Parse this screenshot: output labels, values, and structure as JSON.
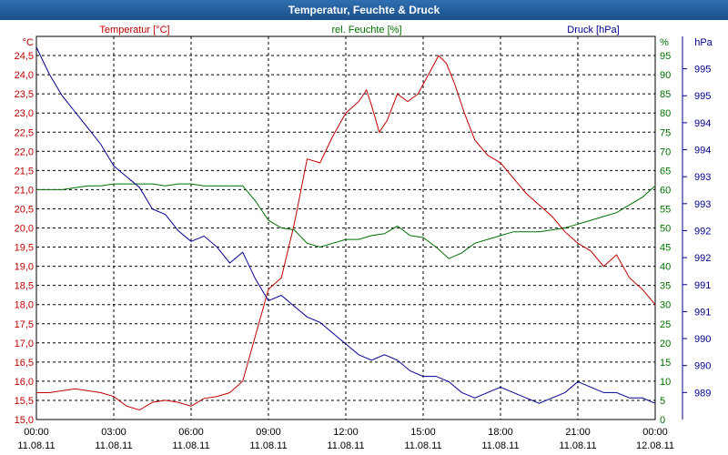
{
  "window": {
    "title": "Temperatur, Feuchte & Druck"
  },
  "chart_data": {
    "type": "line",
    "title": "Temperatur, Feuchte & Druck",
    "x_ticks": [
      {
        "time": "00:00",
        "date": "11.08.11"
      },
      {
        "time": "03:00",
        "date": "11.08.11"
      },
      {
        "time": "06:00",
        "date": "11.08.11"
      },
      {
        "time": "09:00",
        "date": "11.08.11"
      },
      {
        "time": "12:00",
        "date": "11.08.11"
      },
      {
        "time": "15:00",
        "date": "11.08.11"
      },
      {
        "time": "18:00",
        "date": "11.08.11"
      },
      {
        "time": "21:00",
        "date": "11.08.11"
      },
      {
        "time": "00:00",
        "date": "12.08.11"
      }
    ],
    "xlim_hours": [
      0,
      24
    ],
    "axes": {
      "temperature": {
        "label": "Temperatur [°C]",
        "unit": "°C",
        "ylim": [
          15.0,
          25.0
        ],
        "ticks": [
          "24,5",
          "24,0",
          "23,5",
          "23,0",
          "22,5",
          "22,0",
          "21,5",
          "21,0",
          "20,5",
          "20,0",
          "19,5",
          "19,0",
          "18,5",
          "18,0",
          "17,5",
          "17,0",
          "16,5",
          "16,0",
          "15,5",
          "15,0"
        ]
      },
      "humidity": {
        "label": "rel. Feuchte [%]",
        "unit": "%",
        "ylim": [
          0,
          100
        ],
        "ticks": [
          "95",
          "90",
          "85",
          "80",
          "75",
          "70",
          "65",
          "60",
          "55",
          "50",
          "45",
          "40",
          "35",
          "30",
          "25",
          "20",
          "15",
          "10",
          "5",
          "0"
        ]
      },
      "pressure": {
        "label": "Druck [hPa]",
        "unit": "hPa",
        "ylim": [
          988.5,
          995.6
        ],
        "ticks": [
          {
            "label": "995",
            "value": 995.0
          },
          {
            "label": "995",
            "value": 994.5
          },
          {
            "label": "994",
            "value": 994.0
          },
          {
            "label": "994",
            "value": 993.5
          },
          {
            "label": "993",
            "value": 993.0
          },
          {
            "label": "993",
            "value": 992.5
          },
          {
            "label": "992",
            "value": 992.0
          },
          {
            "label": "992",
            "value": 991.5
          },
          {
            "label": "991",
            "value": 991.0
          },
          {
            "label": "991",
            "value": 990.5
          },
          {
            "label": "990",
            "value": 990.0
          },
          {
            "label": "990",
            "value": 989.5
          },
          {
            "label": "989",
            "value": 989.0
          }
        ]
      }
    },
    "series": [
      {
        "name": "Temperatur",
        "axis": "temperature",
        "color": "#c00000",
        "x": [
          0,
          0.5,
          1,
          1.5,
          2,
          2.5,
          3,
          3.5,
          4,
          4.5,
          5,
          5.5,
          6,
          6.5,
          7,
          7.5,
          8,
          8.5,
          9,
          9.5,
          10,
          10.5,
          11,
          11.5,
          12,
          12.5,
          12.8,
          13,
          13.3,
          13.6,
          14,
          14.4,
          14.8,
          15.2,
          15.6,
          15.9,
          16.2,
          16.6,
          17,
          17.5,
          18,
          18.5,
          19,
          19.5,
          20,
          20.5,
          21,
          21.5,
          22,
          22.5,
          23,
          23.5,
          24
        ],
        "values": [
          15.7,
          15.7,
          15.75,
          15.8,
          15.75,
          15.7,
          15.6,
          15.35,
          15.25,
          15.45,
          15.5,
          15.45,
          15.35,
          15.55,
          15.6,
          15.7,
          16.0,
          17.2,
          18.4,
          18.7,
          20.1,
          21.8,
          21.7,
          22.4,
          23.0,
          23.3,
          23.6,
          23.2,
          22.5,
          22.8,
          23.5,
          23.3,
          23.5,
          24.0,
          24.5,
          24.3,
          23.8,
          23.0,
          22.3,
          21.9,
          21.7,
          21.3,
          20.9,
          20.6,
          20.3,
          19.9,
          19.6,
          19.4,
          19.0,
          19.3,
          18.7,
          18.4,
          18.0
        ]
      },
      {
        "name": "rel. Feuchte",
        "axis": "humidity",
        "color": "#007000",
        "x": [
          0,
          0.5,
          1,
          1.5,
          2,
          2.5,
          3,
          3.5,
          4,
          4.5,
          5,
          5.5,
          6,
          6.5,
          7,
          7.5,
          8,
          8.5,
          9,
          9.5,
          10,
          10.5,
          11,
          11.5,
          12,
          12.5,
          13,
          13.5,
          14,
          14.5,
          15,
          15.5,
          16,
          16.5,
          17,
          17.5,
          18,
          18.5,
          19,
          19.5,
          20,
          20.5,
          21,
          21.5,
          22,
          22.5,
          23,
          23.5,
          24
        ],
        "values": [
          60,
          60,
          60,
          60.5,
          61,
          61,
          61.5,
          61.5,
          61.5,
          61.5,
          61,
          61.5,
          61.5,
          61,
          61,
          61,
          61,
          57,
          52,
          50,
          49.5,
          46,
          45,
          46,
          47,
          47,
          48,
          48.5,
          50.5,
          48,
          47.5,
          45,
          42,
          43.5,
          46,
          47,
          48,
          49,
          49,
          49,
          49.5,
          50,
          51,
          52,
          53,
          54,
          56,
          58,
          61
        ]
      },
      {
        "name": "Druck",
        "axis": "pressure",
        "color": "#000090",
        "x": [
          0,
          0.5,
          1,
          1.5,
          2,
          2.5,
          3,
          3.5,
          4,
          4.5,
          5,
          5.5,
          6,
          6.5,
          7,
          7.5,
          8,
          8.5,
          9,
          9.5,
          10,
          10.5,
          11,
          11.5,
          12,
          12.5,
          13,
          13.5,
          14,
          14.5,
          15,
          15.5,
          16,
          16.5,
          17,
          17.5,
          18,
          18.5,
          19,
          19.5,
          20,
          20.5,
          21,
          21.5,
          22,
          22.5,
          23,
          23.5,
          24
        ],
        "values": [
          995.4,
          994.9,
          994.5,
          994.2,
          993.9,
          993.6,
          993.2,
          993.0,
          992.8,
          992.4,
          992.3,
          992.0,
          991.8,
          991.9,
          991.7,
          991.4,
          991.6,
          991.1,
          990.7,
          990.8,
          990.6,
          990.4,
          990.3,
          990.1,
          989.9,
          989.7,
          989.6,
          989.7,
          989.6,
          989.4,
          989.3,
          989.3,
          989.2,
          989.0,
          988.9,
          989.0,
          989.1,
          989.0,
          988.9,
          988.8,
          988.9,
          989.0,
          989.2,
          989.1,
          989.0,
          989.0,
          988.9,
          988.9,
          988.8
        ]
      }
    ]
  }
}
